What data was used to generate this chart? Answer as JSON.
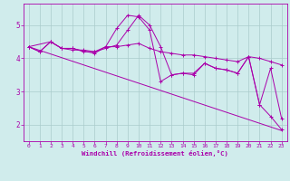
{
  "bg_color": "#d0ecec",
  "line_color": "#aa00aa",
  "grid_color": "#aacccc",
  "xlabel": "Windchill (Refroidissement éolien,°C)",
  "ylim": [
    1.5,
    5.65
  ],
  "xlim": [
    -0.5,
    23.5
  ],
  "yticks": [
    2,
    3,
    4,
    5
  ],
  "xticks": [
    0,
    1,
    2,
    3,
    4,
    5,
    6,
    7,
    8,
    9,
    10,
    11,
    12,
    13,
    14,
    15,
    16,
    17,
    18,
    19,
    20,
    21,
    22,
    23
  ],
  "trend_x": [
    0,
    23
  ],
  "trend_y": [
    4.35,
    1.82
  ],
  "series1_x": [
    0,
    1,
    2,
    3,
    4,
    5,
    6,
    7,
    8,
    9,
    10,
    11,
    12,
    13,
    14,
    15,
    16,
    17,
    18,
    19,
    20,
    21,
    22,
    23
  ],
  "series1_y": [
    4.35,
    4.2,
    4.5,
    4.3,
    4.3,
    4.2,
    4.2,
    4.35,
    4.35,
    4.4,
    4.45,
    4.3,
    4.2,
    4.15,
    4.1,
    4.1,
    4.05,
    4.0,
    3.95,
    3.9,
    4.05,
    4.0,
    3.9,
    3.8
  ],
  "series2_x": [
    0,
    1,
    2,
    3,
    4,
    5,
    6,
    7,
    8,
    9,
    10,
    11,
    12,
    13,
    14,
    15,
    16,
    17,
    18,
    19,
    20,
    21,
    22,
    23
  ],
  "series2_y": [
    4.35,
    4.2,
    4.5,
    4.3,
    4.3,
    4.22,
    4.15,
    4.35,
    4.9,
    5.3,
    5.25,
    4.85,
    3.3,
    3.5,
    3.55,
    3.5,
    3.85,
    3.7,
    3.65,
    3.55,
    4.05,
    2.6,
    3.7,
    2.18
  ],
  "series3_x": [
    0,
    2,
    3,
    4,
    5,
    6,
    7,
    8,
    9,
    10,
    11,
    12,
    13,
    14,
    15,
    16,
    17,
    18,
    19,
    20,
    21,
    22,
    23
  ],
  "series3_y": [
    4.35,
    4.5,
    4.3,
    4.25,
    4.25,
    4.2,
    4.3,
    4.4,
    4.85,
    5.3,
    5.0,
    4.35,
    3.5,
    3.55,
    3.55,
    3.85,
    3.7,
    3.65,
    3.55,
    4.05,
    2.6,
    2.25,
    1.85
  ]
}
